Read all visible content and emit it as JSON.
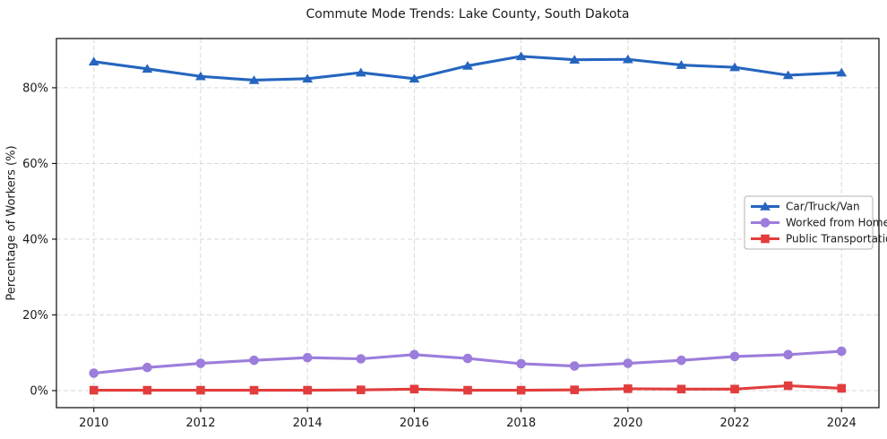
{
  "chart_data": {
    "type": "line",
    "title": "Commute Mode Trends: Lake County, South Dakota",
    "ylabel": "Percentage of Workers (%)",
    "xlabel": "",
    "x": [
      2010,
      2011,
      2012,
      2013,
      2014,
      2015,
      2016,
      2017,
      2018,
      2019,
      2020,
      2021,
      2022,
      2023,
      2024
    ],
    "series": [
      {
        "name": "Car/Truck/Van",
        "color": "#2565bf",
        "marker": "triangle",
        "values": [
          86.9,
          85.0,
          83.0,
          82.0,
          82.4,
          84.0,
          82.4,
          85.8,
          88.3,
          87.4,
          87.5,
          86.0,
          85.4,
          83.3,
          84.0
        ]
      },
      {
        "name": "Worked from Home",
        "color": "#9c7ddb",
        "marker": "circle",
        "values": [
          4.6,
          6.1,
          7.2,
          8.0,
          8.7,
          8.4,
          9.5,
          8.5,
          7.1,
          6.5,
          7.2,
          8.0,
          9.0,
          9.5,
          10.4
        ]
      },
      {
        "name": "Public Transportation",
        "color": "#e23d3d",
        "marker": "square",
        "values": [
          0.1,
          0.1,
          0.1,
          0.1,
          0.1,
          0.2,
          0.4,
          0.1,
          0.1,
          0.2,
          0.5,
          0.4,
          0.4,
          1.3,
          0.6
        ]
      }
    ],
    "xlim": [
      2009.3,
      2024.7
    ],
    "ylim": [
      -4.5,
      93
    ],
    "yticks": [
      {
        "value": 0,
        "label": "0%"
      },
      {
        "value": 20,
        "label": "20%"
      },
      {
        "value": 40,
        "label": "40%"
      },
      {
        "value": 60,
        "label": "60%"
      },
      {
        "value": 80,
        "label": "80%"
      }
    ],
    "xticks": [
      {
        "value": 2010,
        "label": "2010"
      },
      {
        "value": 2012,
        "label": "2012"
      },
      {
        "value": 2014,
        "label": "2014"
      },
      {
        "value": 2016,
        "label": "2016"
      },
      {
        "value": 2018,
        "label": "2018"
      },
      {
        "value": 2020,
        "label": "2020"
      },
      {
        "value": 2022,
        "label": "2022"
      },
      {
        "value": 2024,
        "label": "2024"
      }
    ],
    "grid": true,
    "grid_style": "dashed",
    "legend_position": "center-right"
  },
  "colors": {
    "background": "#ffffff",
    "grid": "#d9d9d9",
    "frame": "#1a1a1a",
    "text": "#1a1a1a",
    "legend_border": "#b3b3b3",
    "legend_background": "#ffffff"
  }
}
